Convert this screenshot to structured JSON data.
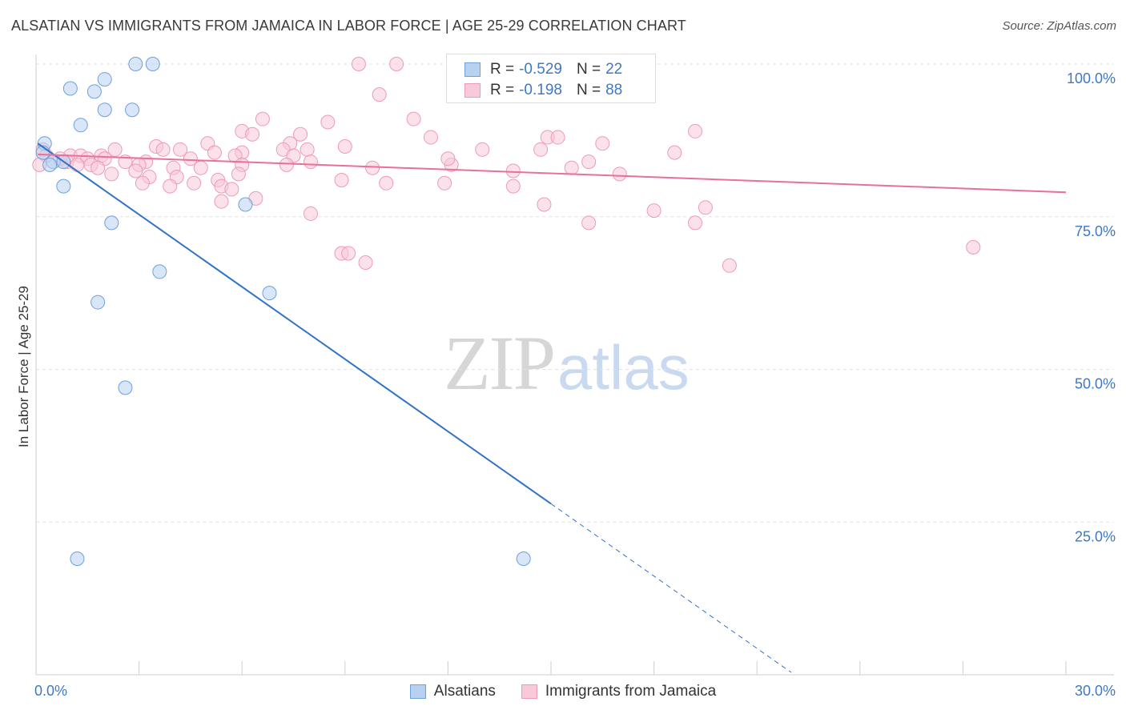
{
  "chart_data": {
    "type": "scatter",
    "title": "ALSATIAN VS IMMIGRANTS FROM JAMAICA IN LABOR FORCE | AGE 25-29 CORRELATION CHART",
    "source": "Source: ZipAtlas.com",
    "xlabel": "",
    "ylabel": "In Labor Force | Age 25-29",
    "xlim": [
      0,
      30
    ],
    "ylim": [
      0,
      100
    ],
    "x_tick_labels": [
      "0.0%",
      "30.0%"
    ],
    "y_ticks": [
      {
        "value": 25,
        "label": "25.0%"
      },
      {
        "value": 50,
        "label": "50.0%"
      },
      {
        "value": 75,
        "label": "75.0%"
      },
      {
        "value": 100,
        "label": "100.0%"
      }
    ],
    "grid": true,
    "legend_position": "top-center",
    "watermark": {
      "zip": "ZIP",
      "atlas": "atlas"
    },
    "series": [
      {
        "name": "Alsatians",
        "color": "#6ea0dc",
        "fill": "#b8d1f1",
        "line_color": "#2f72c8",
        "R": "-0.529",
        "N": "22",
        "trend": {
          "x0": 0.05,
          "y0": 87.0,
          "x1": 15.0,
          "y1": 28.0,
          "dash_to_x": 22.0
        },
        "points": [
          [
            2.9,
            100
          ],
          [
            3.4,
            100
          ],
          [
            2.0,
            97.5
          ],
          [
            1.0,
            96
          ],
          [
            1.7,
            95.5
          ],
          [
            2.0,
            92.5
          ],
          [
            2.8,
            92.5
          ],
          [
            1.3,
            90
          ],
          [
            0.25,
            87
          ],
          [
            0.2,
            85.5
          ],
          [
            0.5,
            84
          ],
          [
            0.8,
            84
          ],
          [
            0.4,
            83.5
          ],
          [
            0.8,
            80
          ],
          [
            6.1,
            77
          ],
          [
            2.2,
            74
          ],
          [
            3.6,
            66
          ],
          [
            6.8,
            62.5
          ],
          [
            1.8,
            61
          ],
          [
            2.6,
            47
          ],
          [
            1.2,
            19
          ],
          [
            14.2,
            19
          ]
        ]
      },
      {
        "name": "Immigrants from Jamaica",
        "color": "#ee9bb6",
        "fill": "#f8c9d8",
        "line_color": "#e8709a",
        "R": "-0.198",
        "N": "88",
        "trend": {
          "x0": 0.05,
          "y0": 85.2,
          "x1": 30.0,
          "y1": 79.0
        },
        "points": [
          [
            9.4,
            100
          ],
          [
            10.5,
            100
          ],
          [
            12.3,
            100
          ],
          [
            10.0,
            95
          ],
          [
            11.0,
            91
          ],
          [
            6.6,
            91
          ],
          [
            8.5,
            90.5
          ],
          [
            6.0,
            89
          ],
          [
            6.3,
            88.5
          ],
          [
            7.7,
            88.5
          ],
          [
            19.2,
            89
          ],
          [
            14.9,
            88
          ],
          [
            15.2,
            88
          ],
          [
            5.0,
            87
          ],
          [
            7.4,
            87
          ],
          [
            16.5,
            87
          ],
          [
            0.2,
            86
          ],
          [
            2.3,
            86
          ],
          [
            3.5,
            86.5
          ],
          [
            3.7,
            86
          ],
          [
            4.2,
            86
          ],
          [
            5.2,
            85.5
          ],
          [
            6.0,
            85.5
          ],
          [
            7.2,
            86
          ],
          [
            7.9,
            86
          ],
          [
            9.0,
            86.5
          ],
          [
            14.7,
            86
          ],
          [
            18.6,
            85.5
          ],
          [
            0.3,
            85
          ],
          [
            1.0,
            85
          ],
          [
            1.3,
            85
          ],
          [
            1.9,
            85
          ],
          [
            0.7,
            84.5
          ],
          [
            1.5,
            84.5
          ],
          [
            2.0,
            84.5
          ],
          [
            3.2,
            84
          ],
          [
            4.5,
            84.5
          ],
          [
            5.8,
            85
          ],
          [
            7.5,
            85
          ],
          [
            8.0,
            84
          ],
          [
            16.1,
            84
          ],
          [
            0.1,
            83.5
          ],
          [
            0.9,
            84
          ],
          [
            1.6,
            83.5
          ],
          [
            2.6,
            84
          ],
          [
            3.0,
            83.5
          ],
          [
            4.0,
            83
          ],
          [
            4.8,
            83
          ],
          [
            6.0,
            83.5
          ],
          [
            7.3,
            83.5
          ],
          [
            12.1,
            83.5
          ],
          [
            15.6,
            83
          ],
          [
            13.9,
            82.5
          ],
          [
            1.8,
            83
          ],
          [
            2.2,
            82
          ],
          [
            2.9,
            82.5
          ],
          [
            3.3,
            81.5
          ],
          [
            4.1,
            81.5
          ],
          [
            5.3,
            81
          ],
          [
            8.9,
            81
          ],
          [
            3.1,
            80.5
          ],
          [
            3.9,
            80
          ],
          [
            4.6,
            80.5
          ],
          [
            10.2,
            80.5
          ],
          [
            11.9,
            80.5
          ],
          [
            13.9,
            80
          ],
          [
            5.4,
            80
          ],
          [
            5.7,
            79.5
          ],
          [
            5.4,
            77.5
          ],
          [
            6.4,
            78
          ],
          [
            14.8,
            77
          ],
          [
            8.0,
            75.5
          ],
          [
            18.0,
            76
          ],
          [
            19.5,
            76.5
          ],
          [
            16.1,
            74
          ],
          [
            19.2,
            74
          ],
          [
            8.9,
            69
          ],
          [
            9.1,
            69
          ],
          [
            9.6,
            67.5
          ],
          [
            20.2,
            67
          ],
          [
            27.3,
            70
          ],
          [
            12.0,
            84.5
          ],
          [
            13.0,
            86
          ],
          [
            11.5,
            88
          ],
          [
            5.9,
            82
          ],
          [
            9.8,
            83
          ],
          [
            17.0,
            82
          ],
          [
            1.2,
            83.5
          ]
        ]
      }
    ]
  },
  "legend_labels": {
    "r": "R = ",
    "n": "N = "
  }
}
